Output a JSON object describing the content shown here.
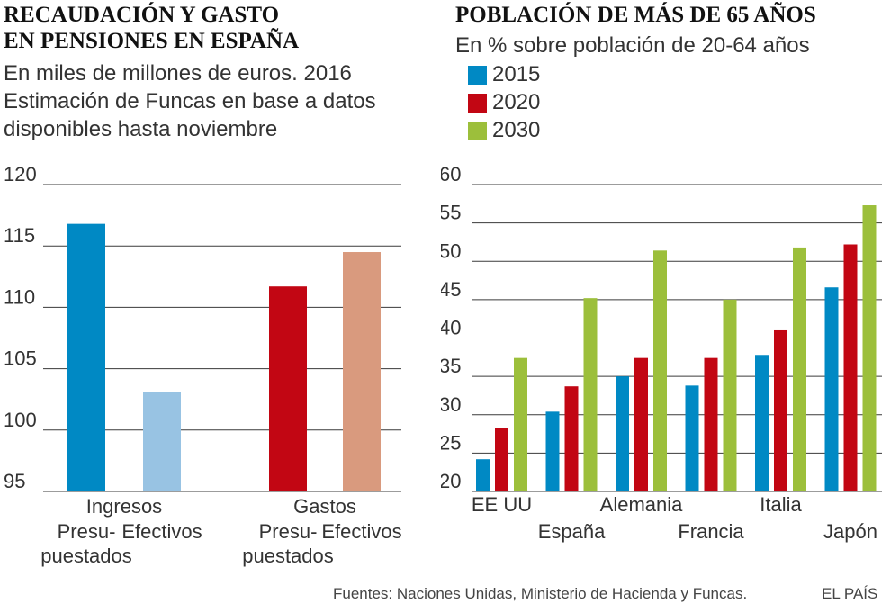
{
  "left": {
    "title_lines": [
      "RECAUDACIÓN Y GASTO",
      "EN PENSIONES EN ESPAÑA"
    ],
    "subtitle_lines": [
      "En miles de millones de euros. 2016",
      "Estimación de Funcas en base a datos",
      "disponibles hasta noviembre"
    ]
  },
  "right": {
    "title": "POBLACIÓN DE MÁS DE 65 AÑOS",
    "subtitle": "En %  sobre población de 20-64 años"
  },
  "footer": {
    "source": "Fuentes: Naciones Unidas, Ministerio de Hacienda y Funcas.",
    "brand": "EL PAÍS"
  },
  "chart_data": [
    {
      "type": "bar",
      "title": "RECAUDACIÓN Y GASTO EN PENSIONES EN ESPAÑA",
      "ylabel": "En miles de millones de euros. 2016",
      "ylim": [
        95,
        120
      ],
      "yticks": [
        95,
        100,
        105,
        110,
        115,
        120
      ],
      "groups": [
        {
          "label": "Ingresos",
          "bars": [
            {
              "label": [
                "Presu-",
                "puestados"
              ],
              "value": 116.8,
              "color": "#0089c4"
            },
            {
              "label": [
                "Efectivos"
              ],
              "value": 103.1,
              "color": "#98c3e3"
            }
          ]
        },
        {
          "label": "Gastos",
          "bars": [
            {
              "label": [
                "Presu-",
                "puestados"
              ],
              "value": 111.7,
              "color": "#c20613"
            },
            {
              "label": [
                "Efectivos"
              ],
              "value": 114.5,
              "color": "#d99a7e"
            }
          ]
        }
      ]
    },
    {
      "type": "bar",
      "title": "POBLACIÓN DE MÁS DE 65 AÑOS",
      "ylabel": "En % sobre población de 20-64 años",
      "ylim": [
        20,
        60
      ],
      "yticks": [
        20,
        25,
        30,
        35,
        40,
        45,
        50,
        55,
        60
      ],
      "categories": [
        "EE UU",
        "España",
        "Alemania",
        "Francia",
        "Italia",
        "Japón"
      ],
      "series": [
        {
          "name": "2015",
          "color": "#0089c4",
          "values": [
            24.2,
            30.4,
            35.0,
            33.8,
            37.8,
            46.6
          ]
        },
        {
          "name": "2020",
          "color": "#c20613",
          "values": [
            28.3,
            33.7,
            37.4,
            37.4,
            41.0,
            52.2
          ]
        },
        {
          "name": "2030",
          "color": "#9cbf3b",
          "values": [
            37.4,
            45.2,
            51.4,
            45.0,
            51.8,
            57.3
          ]
        }
      ]
    }
  ]
}
